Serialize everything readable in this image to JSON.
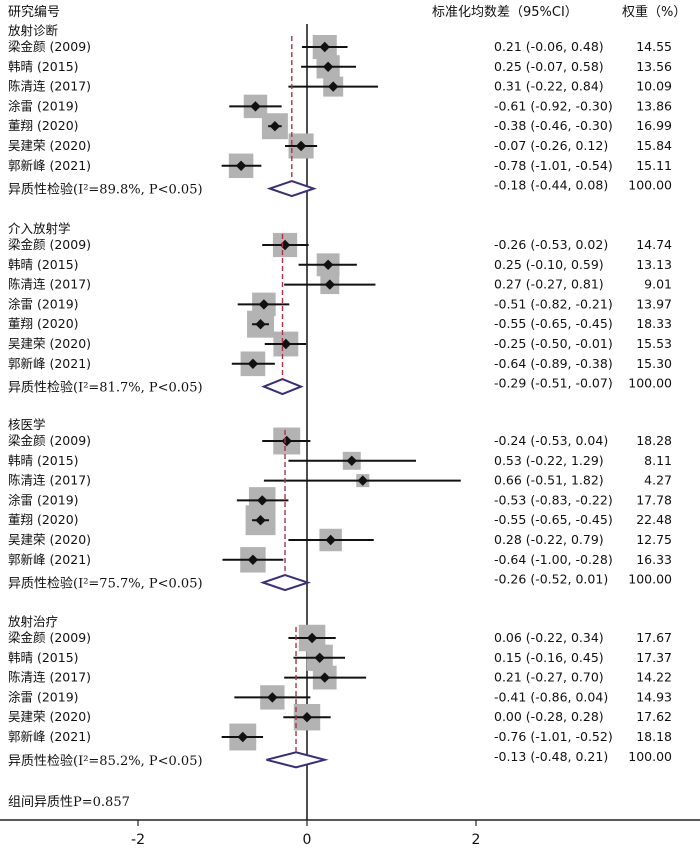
{
  "header": {
    "left": "研究编号",
    "mid": "标准化均数差（95%CI）",
    "right": "权重（%）"
  },
  "chart_data": {
    "type": "forest",
    "xlim": [
      -3.6,
      4.6
    ],
    "ticks": [
      -2,
      0,
      2
    ],
    "tick_labels": [
      "-2",
      "0",
      "2"
    ],
    "overall_heterogeneity": "组间异质性P=0.857",
    "groups": [
      {
        "name": "放射诊断",
        "heterogeneity": "异质性检验(I²=89.8%, P<0.05)",
        "studies": [
          {
            "label": "梁金颜 (2009)",
            "est": 0.21,
            "lo": -0.06,
            "hi": 0.48,
            "ci": "0.21 (-0.06, 0.48)",
            "weight": "14.55"
          },
          {
            "label": "韩晴 (2015)",
            "est": 0.25,
            "lo": -0.07,
            "hi": 0.58,
            "ci": "0.25 (-0.07, 0.58)",
            "weight": "13.56"
          },
          {
            "label": "陈清连 (2017)",
            "est": 0.31,
            "lo": -0.22,
            "hi": 0.84,
            "ci": "0.31 (-0.22, 0.84)",
            "weight": "10.09"
          },
          {
            "label": "涂雷 (2019)",
            "est": -0.61,
            "lo": -0.92,
            "hi": -0.3,
            "ci": "-0.61 (-0.92, -0.30)",
            "weight": "13.86"
          },
          {
            "label": "董翔 (2020)",
            "est": -0.38,
            "lo": -0.46,
            "hi": -0.3,
            "ci": "-0.38 (-0.46, -0.30)",
            "weight": "16.99"
          },
          {
            "label": "吴建荣 (2020)",
            "est": -0.07,
            "lo": -0.26,
            "hi": 0.12,
            "ci": "-0.07 (-0.26, 0.12)",
            "weight": "15.84"
          },
          {
            "label": "郭新峰 (2021)",
            "est": -0.78,
            "lo": -1.01,
            "hi": -0.54,
            "ci": "-0.78 (-1.01, -0.54)",
            "weight": "15.11"
          }
        ],
        "pooled": {
          "est": -0.18,
          "lo": -0.44,
          "hi": 0.08,
          "ci": "-0.18 (-0.44, 0.08)",
          "weight": "100.00"
        }
      },
      {
        "name": "介入放射学",
        "heterogeneity": "异质性检验(I²=81.7%, P<0.05)",
        "studies": [
          {
            "label": "梁金颜 (2009)",
            "est": -0.26,
            "lo": -0.53,
            "hi": 0.02,
            "ci": "-0.26 (-0.53, 0.02)",
            "weight": "14.74"
          },
          {
            "label": "韩晴 (2015)",
            "est": 0.25,
            "lo": -0.1,
            "hi": 0.59,
            "ci": "0.25 (-0.10, 0.59)",
            "weight": "13.13"
          },
          {
            "label": "陈清连 (2017)",
            "est": 0.27,
            "lo": -0.27,
            "hi": 0.81,
            "ci": "0.27 (-0.27, 0.81)",
            "weight": "9.01"
          },
          {
            "label": "涂雷 (2019)",
            "est": -0.51,
            "lo": -0.82,
            "hi": -0.21,
            "ci": "-0.51 (-0.82, -0.21)",
            "weight": "13.97"
          },
          {
            "label": "董翔 (2020)",
            "est": -0.55,
            "lo": -0.65,
            "hi": -0.45,
            "ci": "-0.55 (-0.65, -0.45)",
            "weight": "18.33"
          },
          {
            "label": "吴建荣 (2020)",
            "est": -0.25,
            "lo": -0.5,
            "hi": -0.01,
            "ci": "-0.25 (-0.50, -0.01)",
            "weight": "15.53"
          },
          {
            "label": "郭新峰 (2021)",
            "est": -0.64,
            "lo": -0.89,
            "hi": -0.38,
            "ci": "-0.64 (-0.89, -0.38)",
            "weight": "15.30"
          }
        ],
        "pooled": {
          "est": -0.29,
          "lo": -0.51,
          "hi": -0.07,
          "ci": "-0.29 (-0.51, -0.07)",
          "weight": "100.00"
        }
      },
      {
        "name": "核医学",
        "heterogeneity": "异质性检验(I²=75.7%, P<0.05)",
        "studies": [
          {
            "label": "梁金颜 (2009)",
            "est": -0.24,
            "lo": -0.53,
            "hi": 0.04,
            "ci": "-0.24 (-0.53, 0.04)",
            "weight": "18.28"
          },
          {
            "label": "韩晴 (2015)",
            "est": 0.53,
            "lo": -0.22,
            "hi": 1.29,
            "ci": "0.53 (-0.22, 1.29)",
            "weight": "8.11"
          },
          {
            "label": "陈清连 (2017)",
            "est": 0.66,
            "lo": -0.51,
            "hi": 1.82,
            "ci": "0.66 (-0.51, 1.82)",
            "weight": "4.27"
          },
          {
            "label": "涂雷 (2019)",
            "est": -0.53,
            "lo": -0.83,
            "hi": -0.22,
            "ci": "-0.53 (-0.83, -0.22)",
            "weight": "17.78"
          },
          {
            "label": "董翔 (2020)",
            "est": -0.55,
            "lo": -0.65,
            "hi": -0.45,
            "ci": "-0.55 (-0.65, -0.45)",
            "weight": "22.48"
          },
          {
            "label": "吴建荣 (2020)",
            "est": 0.28,
            "lo": -0.22,
            "hi": 0.79,
            "ci": "0.28 (-0.22, 0.79)",
            "weight": "12.75"
          },
          {
            "label": "郭新峰 (2021)",
            "est": -0.64,
            "lo": -1.0,
            "hi": -0.28,
            "ci": "-0.64 (-1.00, -0.28)",
            "weight": "16.33"
          }
        ],
        "pooled": {
          "est": -0.26,
          "lo": -0.52,
          "hi": 0.01,
          "ci": "-0.26 (-0.52, 0.01)",
          "weight": "100.00"
        }
      },
      {
        "name": "放射治疗",
        "heterogeneity": "异质性检验(I²=85.2%, P<0.05)",
        "studies": [
          {
            "label": "梁金颜 (2009)",
            "est": 0.06,
            "lo": -0.22,
            "hi": 0.34,
            "ci": "0.06 (-0.22, 0.34)",
            "weight": "17.67"
          },
          {
            "label": "韩晴 (2015)",
            "est": 0.15,
            "lo": -0.16,
            "hi": 0.45,
            "ci": "0.15 (-0.16, 0.45)",
            "weight": "17.37"
          },
          {
            "label": "陈清连 (2017)",
            "est": 0.21,
            "lo": -0.27,
            "hi": 0.7,
            "ci": "0.21 (-0.27, 0.70)",
            "weight": "14.22"
          },
          {
            "label": "涂雷 (2019)",
            "est": -0.41,
            "lo": -0.86,
            "hi": 0.04,
            "ci": "-0.41 (-0.86, 0.04)",
            "weight": "14.93"
          },
          {
            "label": "吴建荣 (2020)",
            "est": 0.0,
            "lo": -0.28,
            "hi": 0.28,
            "ci": "0.00 (-0.28, 0.28)",
            "weight": "17.62"
          },
          {
            "label": "郭新峰 (2021)",
            "est": -0.76,
            "lo": -1.01,
            "hi": -0.52,
            "ci": "-0.76 (-1.01, -0.52)",
            "weight": "18.18"
          }
        ],
        "pooled": {
          "est": -0.13,
          "lo": -0.48,
          "hi": 0.21,
          "ci": "-0.13 (-0.48, 0.21)",
          "weight": "100.00"
        }
      }
    ]
  }
}
